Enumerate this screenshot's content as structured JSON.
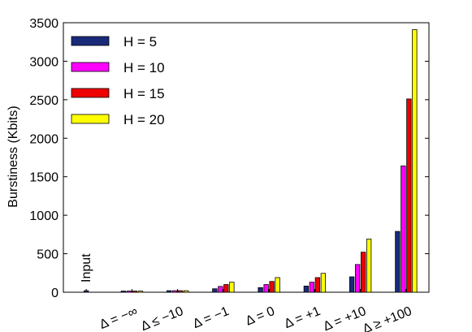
{
  "chart_data": {
    "type": "bar",
    "ylabel": "Burstiness (Kbits)",
    "xlabel": "",
    "ylim": [
      0,
      3500
    ],
    "yticks": [
      0,
      500,
      1000,
      1500,
      2000,
      2500,
      3000,
      3500
    ],
    "categories": [
      "Input",
      "Δ = −∞",
      "Δ ≤ −10",
      "Δ = −1",
      "Δ = 0",
      "Δ = +1",
      "Δ = +10",
      "Δ ≥ +100"
    ],
    "input_bar": {
      "label": "Input",
      "value": 20,
      "color": "#1a2a7a"
    },
    "series": [
      {
        "name": "H = 5",
        "color": "#1a2a7a",
        "values": [
          null,
          15,
          20,
          45,
          60,
          80,
          200,
          790
        ]
      },
      {
        "name": "H = 10",
        "color": "#ff00ff",
        "values": [
          null,
          15,
          20,
          75,
          100,
          130,
          360,
          1640
        ]
      },
      {
        "name": "H = 15",
        "color": "#ee0000",
        "values": [
          null,
          15,
          20,
          100,
          140,
          190,
          520,
          2510
        ]
      },
      {
        "name": "H = 20",
        "color": "#ffff00",
        "values": [
          null,
          15,
          20,
          130,
          190,
          245,
          690,
          3410
        ]
      }
    ],
    "legend_position": "top-left",
    "grid": false
  }
}
